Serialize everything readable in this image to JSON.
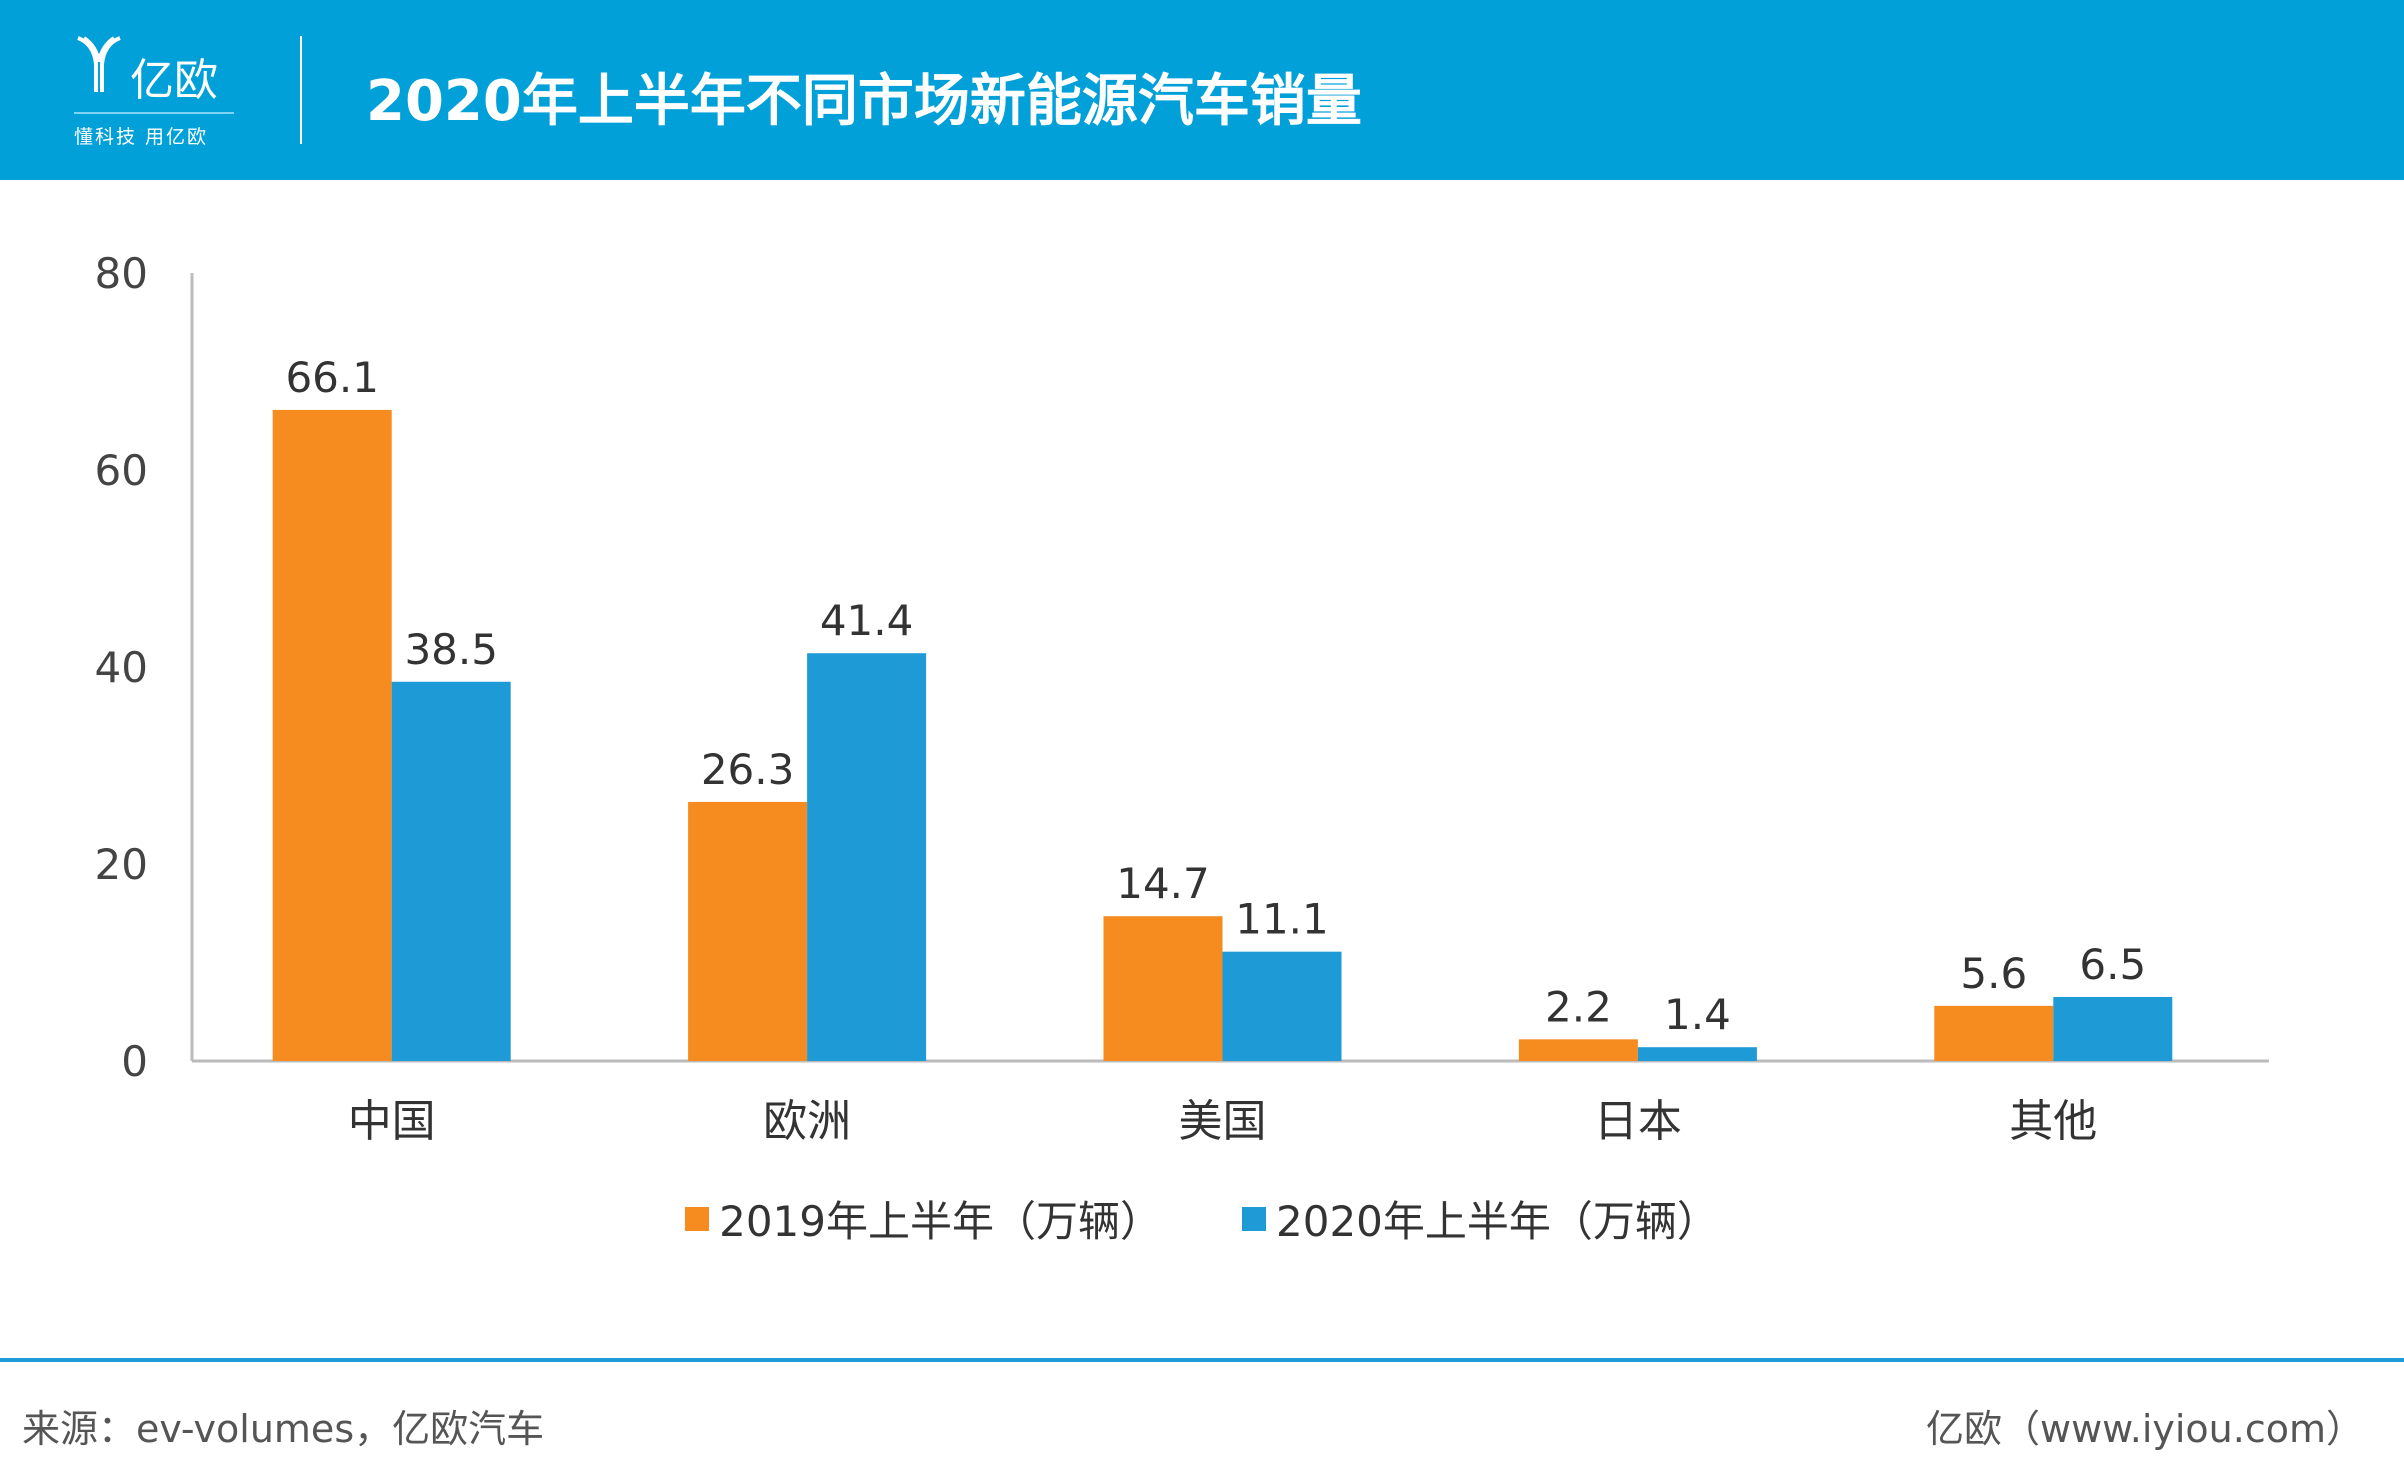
{
  "header": {
    "logo_text": "亿欧",
    "slogan": "懂科技 用亿欧",
    "title": "2020年上半年不同市场新能源汽车销量"
  },
  "chart_data": {
    "type": "bar",
    "title": "2020年上半年不同市场新能源汽车销量",
    "categories": [
      "中国",
      "欧洲",
      "美国",
      "日本",
      "其他"
    ],
    "series": [
      {
        "name": "2019年上半年（万辆）",
        "values": [
          66.1,
          26.3,
          14.7,
          2.2,
          5.6
        ],
        "color": "#f68b1f"
      },
      {
        "name": "2020年上半年（万辆）",
        "values": [
          38.5,
          41.4,
          11.1,
          1.4,
          6.5
        ],
        "color": "#1e9bd7"
      }
    ],
    "yticks": [
      0,
      20,
      40,
      60,
      80
    ],
    "ylim": [
      0,
      80
    ],
    "grid": false,
    "legend": "bottom",
    "xlabel": "",
    "ylabel": ""
  },
  "footer": {
    "source": "来源：ev-volumes，亿欧汽车",
    "site": "亿欧（www.iyiou.com）"
  }
}
